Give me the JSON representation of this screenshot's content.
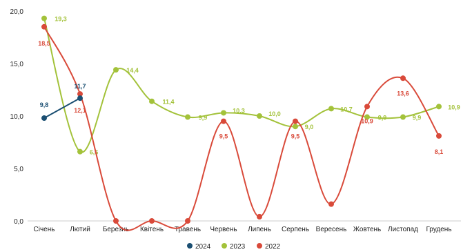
{
  "chart_data": {
    "type": "line",
    "categories": [
      "Січень",
      "Лютий",
      "Березнь",
      "Квітень",
      "Травень",
      "Червень",
      "Липень",
      "Серпень",
      "Вересень",
      "Жовтень",
      "Листопад",
      "Грудень"
    ],
    "ylim": [
      0,
      20
    ],
    "yticks": [
      "0,0",
      "5,0",
      "10,0",
      "15,0",
      "20,0"
    ],
    "grid": false,
    "legend_position": "bottom",
    "series": [
      {
        "name": "2024",
        "color": "#1b4f72",
        "smooth": false,
        "values": [
          9.8,
          11.7,
          null,
          null,
          null,
          null,
          null,
          null,
          null,
          null,
          null,
          null
        ],
        "labels": [
          "9,8",
          "11,7",
          "",
          "",
          "",
          "",
          "",
          "",
          "",
          "",
          "",
          ""
        ]
      },
      {
        "name": "2023",
        "color": "#a3c23a",
        "smooth": true,
        "values": [
          19.3,
          6.6,
          14.4,
          11.4,
          9.9,
          10.3,
          10.0,
          9.0,
          10.7,
          9.9,
          9.9,
          10.9
        ],
        "labels": [
          "19,3",
          "6,6",
          "14,4",
          "11,4",
          "9,9",
          "10,3",
          "10,0",
          "9,0",
          "10,7",
          "9,9",
          "9,9",
          "10,9"
        ]
      },
      {
        "name": "2022",
        "color": "#d94a3a",
        "smooth": true,
        "values": [
          18.5,
          12.1,
          0,
          0,
          0,
          9.5,
          0.4,
          9.5,
          1.6,
          10.9,
          13.6,
          8.1
        ],
        "labels": [
          "18,5",
          "12,1",
          "",
          "",
          "",
          "9,5",
          "",
          "9,5",
          "",
          "10,9",
          "13,6",
          "8,1"
        ]
      }
    ]
  }
}
